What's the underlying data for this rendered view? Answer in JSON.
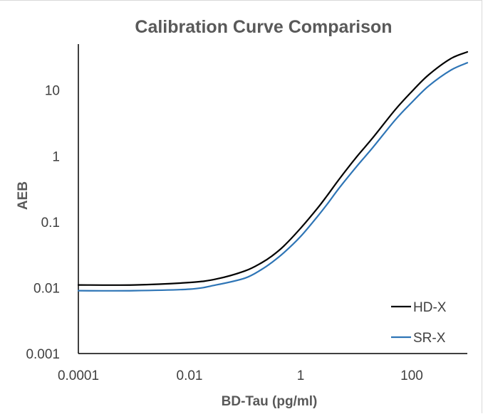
{
  "chart_data": {
    "type": "line",
    "title": "Calibration Curve Comparison",
    "xlabel": "BD-Tau (pg/ml)",
    "ylabel": "AEB",
    "x_scale": "log",
    "y_scale": "log",
    "xlim": [
      0.0001,
      1000
    ],
    "ylim": [
      0.001,
      50
    ],
    "x_ticks": [
      0.0001,
      0.01,
      1,
      100
    ],
    "x_tick_labels": [
      "0.0001",
      "0.01",
      "1",
      "100"
    ],
    "y_ticks": [
      0.001,
      0.01,
      0.1,
      1,
      10
    ],
    "y_tick_labels": [
      "0.001",
      "0.01",
      "0.1",
      "1",
      "10"
    ],
    "grid": false,
    "legend_position": "bottom-right",
    "series": [
      {
        "name": "HD-X",
        "color": "#000000",
        "x": [
          0.0001,
          0.001,
          0.01,
          0.03,
          0.1,
          0.2,
          0.3,
          0.5,
          1,
          2,
          3,
          5,
          10,
          20,
          50,
          100,
          200,
          500,
          1000
        ],
        "y": [
          0.011,
          0.011,
          0.012,
          0.0135,
          0.018,
          0.024,
          0.03,
          0.043,
          0.08,
          0.16,
          0.25,
          0.45,
          0.95,
          1.9,
          5.0,
          9.5,
          17,
          30,
          38
        ]
      },
      {
        "name": "SR-X",
        "color": "#2e75b6",
        "x": [
          0.0001,
          0.001,
          0.01,
          0.03,
          0.1,
          0.2,
          0.3,
          0.5,
          1,
          2,
          3,
          5,
          10,
          20,
          50,
          100,
          200,
          500,
          1000
        ],
        "y": [
          0.009,
          0.009,
          0.0095,
          0.011,
          0.014,
          0.019,
          0.024,
          0.034,
          0.06,
          0.12,
          0.185,
          0.33,
          0.68,
          1.35,
          3.5,
          6.5,
          11.5,
          20,
          26
        ]
      }
    ]
  }
}
